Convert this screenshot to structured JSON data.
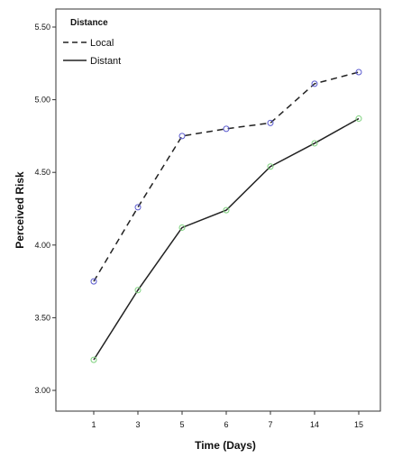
{
  "chart_data": {
    "type": "line",
    "x": [
      "1",
      "3",
      "5",
      "6",
      "7",
      "14",
      "15"
    ],
    "xlabel": "Time (Days)",
    "ylabel": "Perceived Risk",
    "ylim": [
      3.0,
      5.5
    ],
    "yticks": [
      "3.00",
      "3.50",
      "4.00",
      "4.50",
      "5.00",
      "5.50"
    ],
    "grid": false,
    "legend": {
      "title": "Distance",
      "placement": "top-left"
    },
    "series": [
      {
        "name": "Local",
        "style": "dashed",
        "color": "#222222",
        "marker_color": "#5a5acf",
        "values": [
          3.75,
          4.26,
          4.75,
          4.8,
          4.84,
          5.11,
          5.19
        ]
      },
      {
        "name": "Distant",
        "style": "solid",
        "color": "#222222",
        "marker_color": "#7ed17e",
        "values": [
          3.21,
          3.69,
          4.12,
          4.24,
          4.54,
          4.7,
          4.87
        ]
      }
    ]
  }
}
